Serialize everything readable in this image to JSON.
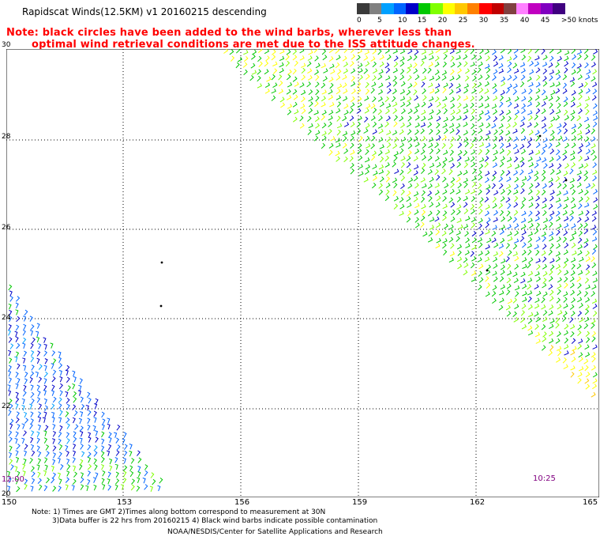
{
  "title": "Rapidscat Winds(12.5KM) v1 20160215 descending",
  "note_line1": "Note: black circles have been added to the wind barbs, wherever less than",
  "note_line2": "optimal wind retrieval conditions are met due to the ISS attitude changes.",
  "color_scale": {
    "colors": [
      "#3a3a3a",
      "#808080",
      "#00a0ff",
      "#0064ff",
      "#0000c8",
      "#00c800",
      "#80ff00",
      "#ffff00",
      "#ffc800",
      "#ff8000",
      "#ff0000",
      "#c00000",
      "#804040",
      "#ff80ff",
      "#c000c0",
      "#8000c0",
      "#400080"
    ],
    "labels": [
      "0",
      "5",
      "10",
      "15",
      "20",
      "25",
      "30",
      "35",
      "40",
      "45",
      ">50 knots"
    ],
    "label_positions": [
      0,
      1.9,
      3.8,
      5.6,
      7.5,
      9.4,
      11.3,
      13.2,
      15.1,
      17.0,
      18.9
    ]
  },
  "latitude_labels": [
    "30",
    "28",
    "26",
    "24",
    "22",
    "20"
  ],
  "longitude_labels": [
    "150",
    "153",
    "156",
    "159",
    "162",
    "165"
  ],
  "time_left": "12:00",
  "time_right": "10:25",
  "footer_line1": "Note: 1) Times are GMT 2)Times along bottom correspond to measurement at 30N",
  "footer_line2": "3)Data buffer is 22 hrs from 20160215 4) Black wind barbs indicate possible contamination",
  "footer_line3": "NOAA/NESDIS/Center for Satellite Applications and Research"
}
